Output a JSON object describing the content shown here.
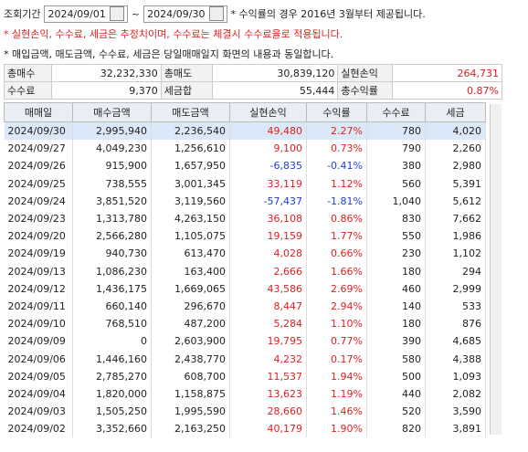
{
  "header": {
    "period_label": "조회기간",
    "start_date": "2024/09/01",
    "separator": "~",
    "end_date": "2024/09/30",
    "note": "* 수익률의 경우 2016년 3월부터 제공됩니다."
  },
  "notes": [
    "* 실현손익, 수수료, 세금은 추정치이며, 수수료는 체결시 수수료율로 적용됩니다.",
    "* 매입금액, 매도금액, 수수료, 세금은 당일매매일지 화면의 내용과 동일합니다."
  ],
  "summary": {
    "rows": [
      [
        "총매수",
        "32,232,330",
        "총매도",
        "30,839,120",
        "실현손익",
        "264,731"
      ],
      [
        "수수료",
        "9,370",
        "세금합",
        "55,444",
        "총수익률",
        "0.87%"
      ]
    ]
  },
  "table": {
    "columns": [
      "매매일",
      "매수금액",
      "매도금액",
      "실현손익",
      "수익률",
      "수수료",
      "세금"
    ],
    "rows": [
      [
        "2024/09/30",
        "2,995,940",
        "2,236,540",
        "49,480",
        "2.27%",
        "780",
        "4,020"
      ],
      [
        "2024/09/27",
        "4,049,230",
        "1,256,610",
        "9,100",
        "0.73%",
        "790",
        "2,260"
      ],
      [
        "2024/09/26",
        "915,900",
        "1,657,950",
        "-6,835",
        "-0.41%",
        "380",
        "2,980"
      ],
      [
        "2024/09/25",
        "738,555",
        "3,001,345",
        "33,119",
        "1.12%",
        "560",
        "5,391"
      ],
      [
        "2024/09/24",
        "3,851,520",
        "3,119,560",
        "-57,437",
        "-1.81%",
        "1,040",
        "5,612"
      ],
      [
        "2024/09/23",
        "1,313,780",
        "4,263,150",
        "36,108",
        "0.86%",
        "830",
        "7,662"
      ],
      [
        "2024/09/20",
        "2,566,280",
        "1,105,075",
        "19,159",
        "1.77%",
        "550",
        "1,986"
      ],
      [
        "2024/09/19",
        "940,730",
        "613,470",
        "4,028",
        "0.66%",
        "230",
        "1,102"
      ],
      [
        "2024/09/13",
        "1,086,230",
        "163,400",
        "2,666",
        "1.66%",
        "180",
        "294"
      ],
      [
        "2024/09/12",
        "1,436,175",
        "1,669,065",
        "43,586",
        "2.69%",
        "460",
        "2,999"
      ],
      [
        "2024/09/11",
        "660,140",
        "296,670",
        "8,447",
        "2.94%",
        "140",
        "533"
      ],
      [
        "2024/09/10",
        "768,510",
        "487,200",
        "5,284",
        "1.10%",
        "180",
        "876"
      ],
      [
        "2024/09/09",
        "0",
        "2,603,900",
        "19,795",
        "0.77%",
        "390",
        "4,685"
      ],
      [
        "2024/09/06",
        "1,446,160",
        "2,438,770",
        "4,232",
        "0.17%",
        "580",
        "4,388"
      ],
      [
        "2024/09/05",
        "2,785,270",
        "608,700",
        "11,537",
        "1.94%",
        "500",
        "1,093"
      ],
      [
        "2024/09/04",
        "1,820,000",
        "1,158,875",
        "13,623",
        "1.19%",
        "440",
        "2,082"
      ],
      [
        "2024/09/03",
        "1,505,250",
        "1,995,590",
        "28,660",
        "1.46%",
        "520",
        "3,590"
      ],
      [
        "2024/09/02",
        "3,352,660",
        "2,163,250",
        "40,179",
        "1.90%",
        "820",
        "3,891"
      ]
    ]
  }
}
